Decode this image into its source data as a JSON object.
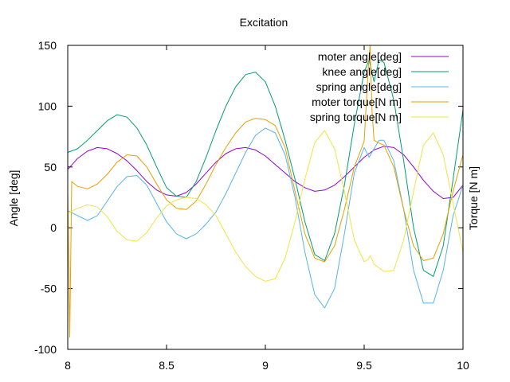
{
  "chart_data": {
    "type": "line",
    "title": "Excitation",
    "xlabel": "",
    "ylabel": "Angle [deg]",
    "y2label": "Torque [N m]",
    "xlim": [
      8,
      10
    ],
    "ylim": [
      -100,
      150
    ],
    "xticks": [
      "8",
      "8.5",
      "9",
      "9.5",
      "10"
    ],
    "yticks": [
      "-100",
      "-50",
      "0",
      "50",
      "100",
      "150"
    ],
    "grid": false,
    "legend_position": "top-right",
    "series": [
      {
        "name": "moter angle[deg]",
        "color": "#9400d3",
        "x": [
          8.0,
          8.05,
          8.1,
          8.15,
          8.2,
          8.25,
          8.3,
          8.35,
          8.4,
          8.45,
          8.5,
          8.55,
          8.6,
          8.65,
          8.7,
          8.75,
          8.8,
          8.85,
          8.9,
          8.95,
          9.0,
          9.05,
          9.1,
          9.15,
          9.2,
          9.25,
          9.3,
          9.35,
          9.4,
          9.45,
          9.5,
          9.55,
          9.6,
          9.65,
          9.7,
          9.75,
          9.8,
          9.85,
          9.9,
          9.95,
          10.0
        ],
        "y": [
          48,
          57,
          63,
          66,
          65,
          61,
          55,
          47,
          38,
          31,
          27,
          26,
          29,
          36,
          45,
          54,
          61,
          65,
          66,
          64,
          59,
          52,
          45,
          38,
          33,
          30,
          31,
          35,
          42,
          50,
          58,
          64,
          67,
          66,
          60,
          50,
          39,
          30,
          24,
          25,
          35
        ]
      },
      {
        "name": "knee angle[deg]",
        "color": "#009e73",
        "x": [
          8.0,
          8.05,
          8.1,
          8.15,
          8.2,
          8.25,
          8.3,
          8.35,
          8.4,
          8.45,
          8.5,
          8.55,
          8.6,
          8.65,
          8.7,
          8.75,
          8.8,
          8.85,
          8.9,
          8.95,
          9.0,
          9.05,
          9.1,
          9.15,
          9.2,
          9.25,
          9.3,
          9.35,
          9.4,
          9.45,
          9.5,
          9.525,
          9.55,
          9.575,
          9.6,
          9.65,
          9.7,
          9.75,
          9.8,
          9.85,
          9.9,
          9.95,
          10.0
        ],
        "y": [
          62,
          65,
          72,
          80,
          88,
          93,
          91,
          82,
          68,
          50,
          33,
          26,
          25,
          38,
          58,
          80,
          100,
          116,
          126,
          128,
          120,
          100,
          72,
          40,
          5,
          -22,
          -27,
          -5,
          35,
          85,
          128,
          138,
          120,
          138,
          136,
          105,
          55,
          0,
          -35,
          -40,
          -15,
          40,
          97
        ]
      },
      {
        "name": "spring angle[deg]",
        "color": "#56b4e9",
        "x": [
          8.0,
          8.05,
          8.1,
          8.15,
          8.2,
          8.25,
          8.3,
          8.35,
          8.4,
          8.45,
          8.5,
          8.55,
          8.6,
          8.65,
          8.7,
          8.75,
          8.8,
          8.85,
          8.9,
          8.95,
          9.0,
          9.05,
          9.1,
          9.15,
          9.2,
          9.25,
          9.3,
          9.35,
          9.4,
          9.45,
          9.5,
          9.525,
          9.55,
          9.575,
          9.6,
          9.65,
          9.7,
          9.75,
          9.8,
          9.85,
          9.9,
          9.95,
          10.0
        ],
        "y": [
          14,
          10,
          6,
          10,
          22,
          34,
          42,
          43,
          35,
          20,
          5,
          -5,
          -9,
          -5,
          3,
          13,
          28,
          45,
          62,
          76,
          82,
          78,
          60,
          25,
          -20,
          -55,
          -66,
          -50,
          -5,
          45,
          66,
          58,
          65,
          72,
          72,
          55,
          15,
          -35,
          -62,
          -62,
          -35,
          10,
          35
        ]
      },
      {
        "name": "moter torque[N m]",
        "color": "#e69f00",
        "x": [
          8.0,
          8.01,
          8.02,
          8.05,
          8.1,
          8.15,
          8.2,
          8.25,
          8.3,
          8.35,
          8.4,
          8.45,
          8.5,
          8.55,
          8.6,
          8.65,
          8.7,
          8.75,
          8.8,
          8.85,
          8.9,
          8.95,
          9.0,
          9.05,
          9.1,
          9.15,
          9.2,
          9.25,
          9.3,
          9.35,
          9.4,
          9.45,
          9.5,
          9.52,
          9.53,
          9.54,
          9.55,
          9.57,
          9.6,
          9.65,
          9.7,
          9.75,
          9.8,
          9.85,
          9.9,
          9.95,
          10.0
        ],
        "y": [
          30,
          -90,
          38,
          34,
          32,
          36,
          44,
          54,
          60,
          59,
          50,
          36,
          23,
          16,
          15,
          22,
          36,
          52,
          66,
          78,
          87,
          90,
          89,
          84,
          66,
          30,
          -5,
          -25,
          -28,
          -15,
          15,
          50,
          71,
          130,
          150,
          95,
          72,
          70,
          68,
          50,
          15,
          -15,
          -27,
          -25,
          -5,
          30,
          60
        ]
      },
      {
        "name": "spring torque[N m]",
        "color": "#f0e442",
        "x": [
          8.0,
          8.05,
          8.1,
          8.15,
          8.2,
          8.25,
          8.3,
          8.35,
          8.4,
          8.45,
          8.5,
          8.55,
          8.6,
          8.65,
          8.7,
          8.75,
          8.8,
          8.85,
          8.9,
          8.95,
          9.0,
          9.05,
          9.1,
          9.15,
          9.2,
          9.25,
          9.3,
          9.35,
          9.4,
          9.45,
          9.5,
          9.52,
          9.53,
          9.54,
          9.55,
          9.6,
          9.65,
          9.7,
          9.75,
          9.8,
          9.85,
          9.9,
          9.95,
          10.0
        ],
        "y": [
          12,
          16,
          19,
          17,
          9,
          -3,
          -10,
          -11,
          -4,
          8,
          18,
          23,
          25,
          24,
          19,
          10,
          -5,
          -20,
          -32,
          -40,
          -44,
          -42,
          -25,
          5,
          40,
          70,
          80,
          65,
          30,
          -10,
          -28,
          -26,
          -23,
          -26,
          -30,
          -36,
          -35,
          -10,
          30,
          68,
          78,
          60,
          20,
          -20
        ]
      }
    ]
  }
}
